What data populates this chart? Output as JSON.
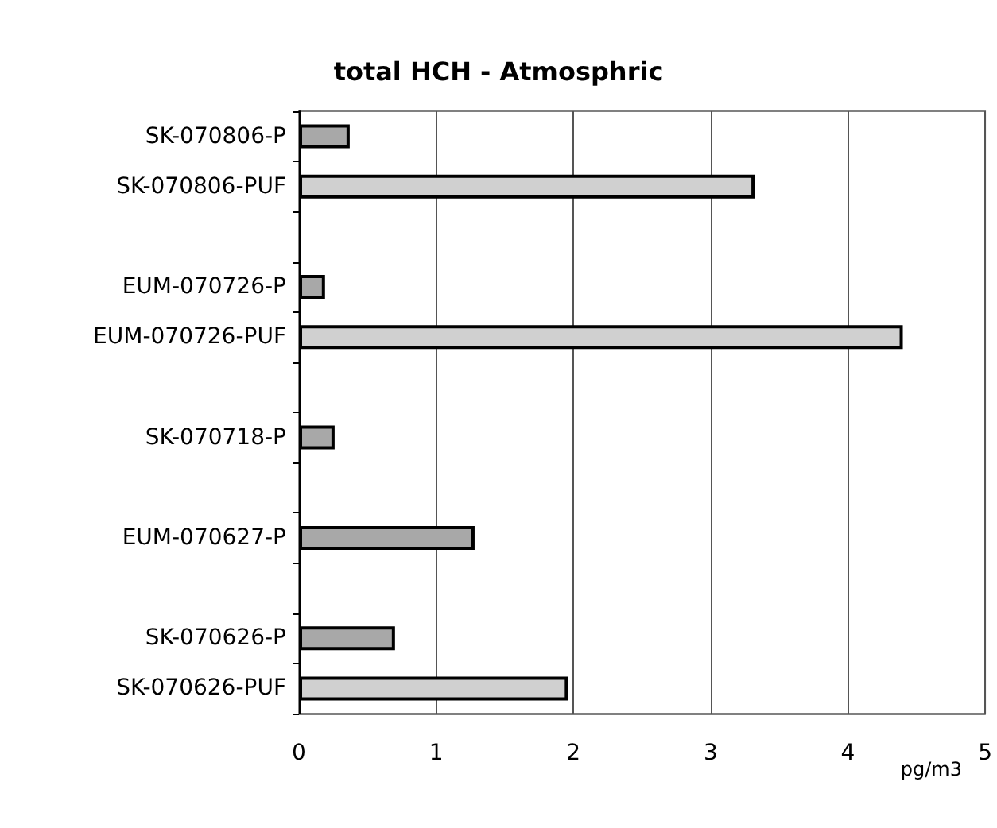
{
  "chart_data": {
    "type": "bar",
    "orientation": "horizontal",
    "title": "total HCH - Atmosphric",
    "xlabel": "pg/m3",
    "categories": [
      "SK-070806-P",
      "SK-070806-PUF",
      null,
      "EUM-070726-P",
      "EUM-070726-PUF",
      null,
      "SK-070718-P",
      null,
      "EUM-070627-P",
      null,
      "SK-070626-P",
      "SK-070626-PUF"
    ],
    "values": [
      0.37,
      3.32,
      null,
      0.19,
      4.4,
      null,
      0.26,
      null,
      1.28,
      null,
      0.7,
      1.96
    ],
    "colors": [
      "#a8a8a8",
      "#d0d0d0",
      null,
      "#a8a8a8",
      "#d0d0d0",
      null,
      "#a8a8a8",
      null,
      "#a8a8a8",
      null,
      "#a8a8a8",
      "#d0d0d0"
    ],
    "xlim": [
      0,
      5
    ],
    "xticks": [
      0,
      1,
      2,
      3,
      4,
      5
    ],
    "grid": "x"
  }
}
